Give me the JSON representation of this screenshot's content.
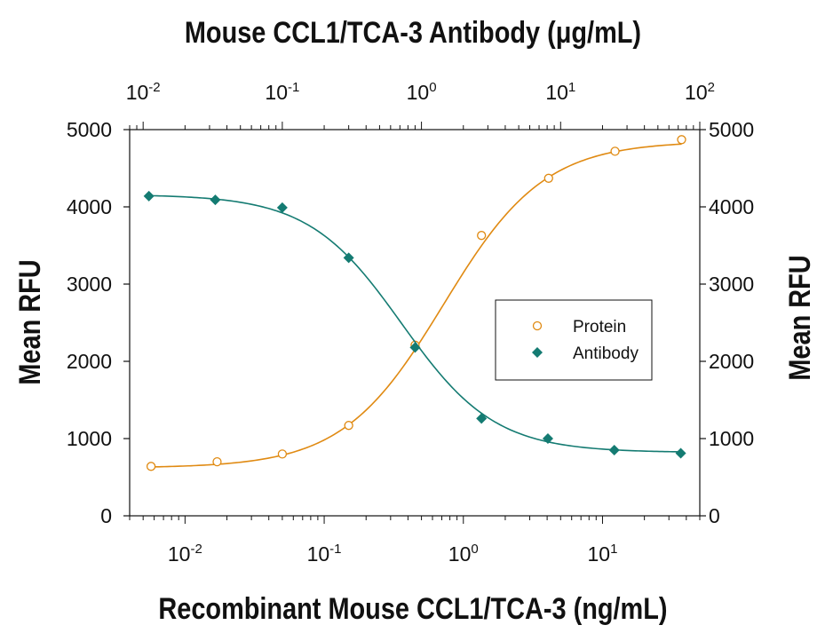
{
  "chart_data": {
    "type": "scatter",
    "title_top": "Mouse CCL1/TCA-3 Antibody (μg/mL)",
    "xlabel": "Recombinant Mouse CCL1/TCA-3 (ng/mL)",
    "ylabel_left": "Mean RFU",
    "ylabel_right": "Mean RFU",
    "x_scale": "log",
    "x_bottom_lim": [
      0.004,
      50
    ],
    "x_top_lim": [
      0.008,
      100
    ],
    "x_bottom_ticks": [
      {
        "base": "10",
        "exp": "-2"
      },
      {
        "base": "10",
        "exp": "-1"
      },
      {
        "base": "10",
        "exp": "0"
      },
      {
        "base": "10",
        "exp": "1"
      }
    ],
    "x_top_ticks": [
      {
        "base": "10",
        "exp": "-2"
      },
      {
        "base": "10",
        "exp": "-1"
      },
      {
        "base": "10",
        "exp": "0"
      },
      {
        "base": "10",
        "exp": "1"
      },
      {
        "base": "10",
        "exp": "2"
      }
    ],
    "ylim": [
      0,
      5000
    ],
    "y_ticks": [
      "0",
      "1000",
      "2000",
      "3000",
      "4000",
      "5000"
    ],
    "grid": false,
    "legend_position": "center-right",
    "series": [
      {
        "name": "Protein",
        "axis": "bottom",
        "marker": "open-circle",
        "color": "#E08A12",
        "x": [
          0.0057,
          0.017,
          0.05,
          0.15,
          0.45,
          1.35,
          4.1,
          12.3,
          37
        ],
        "y": [
          640,
          700,
          800,
          1170,
          2210,
          3630,
          4370,
          4720,
          4870
        ],
        "fit": {
          "bottom": 620,
          "top": 4850,
          "ec50": 0.72,
          "hill": 1.2
        }
      },
      {
        "name": "Antibody",
        "axis": "top",
        "marker": "filled-diamond",
        "color": "#147B72",
        "x": [
          0.011,
          0.033,
          0.1,
          0.3,
          0.9,
          2.7,
          8.1,
          24.3,
          73
        ],
        "y": [
          4140,
          4090,
          3990,
          3340,
          2180,
          1260,
          1000,
          850,
          810
        ],
        "fit": {
          "bottom": 820,
          "top": 4160,
          "ec50": 0.72,
          "hill": 1.3
        }
      }
    ]
  }
}
